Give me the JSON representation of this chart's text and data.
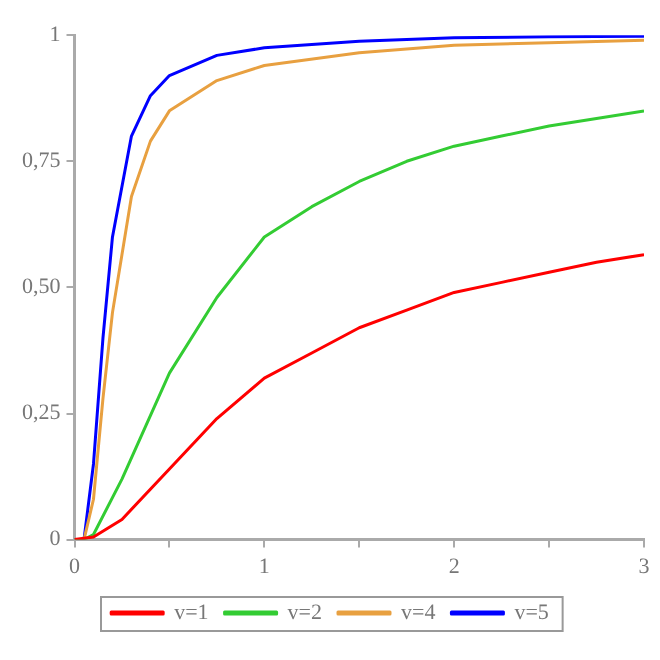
{
  "chart_data": {
    "type": "line",
    "xlim": [
      0,
      3
    ],
    "ylim": [
      0,
      1
    ],
    "xticks": [
      0,
      {
        "value": 0.5,
        "label": null
      },
      1,
      {
        "value": 1.5,
        "label": null
      },
      2,
      {
        "value": 2.5,
        "label": null
      },
      3
    ],
    "yticks": [
      0,
      {
        "value": 0.25,
        "label": "0,25"
      },
      {
        "value": 0.5,
        "label": "0,50"
      },
      {
        "value": 0.75,
        "label": "0,75"
      },
      1
    ],
    "grid": false,
    "legend": "bottom",
    "marker": "none",
    "line_style": "solid",
    "series": [
      {
        "name": "v=1",
        "color": "#ff0000",
        "x": [
          0,
          0.1,
          0.25,
          0.5,
          0.75,
          1,
          1.25,
          1.5,
          1.75,
          2,
          2.25,
          2.5,
          2.75,
          3
        ],
        "values": [
          0,
          0.005,
          0.04,
          0.14,
          0.24,
          0.32,
          0.37,
          0.42,
          0.455,
          0.49,
          0.51,
          0.53,
          0.55,
          0.565
        ]
      },
      {
        "name": "v=2",
        "color": "#33cc33",
        "x": [
          0,
          0.05,
          0.1,
          0.25,
          0.5,
          0.75,
          1,
          1.25,
          1.5,
          1.75,
          2,
          2.25,
          2.5,
          2.75,
          3
        ],
        "values": [
          0,
          0,
          0.01,
          0.12,
          0.33,
          0.48,
          0.6,
          0.66,
          0.71,
          0.75,
          0.78,
          0.8,
          0.82,
          0.835,
          0.85
        ]
      },
      {
        "name": "v=4",
        "color": "#e8a040",
        "x": [
          0,
          0.05,
          0.1,
          0.15,
          0.2,
          0.3,
          0.4,
          0.5,
          0.75,
          1,
          1.5,
          2,
          2.5,
          3
        ],
        "values": [
          0,
          0,
          0.08,
          0.28,
          0.45,
          0.68,
          0.79,
          0.85,
          0.91,
          0.94,
          0.965,
          0.98,
          0.985,
          0.99
        ]
      },
      {
        "name": "v=5",
        "color": "#0000ff",
        "x": [
          0,
          0.05,
          0.1,
          0.15,
          0.2,
          0.3,
          0.4,
          0.5,
          0.75,
          1,
          1.5,
          2,
          2.5,
          3
        ],
        "values": [
          0,
          0,
          0.15,
          0.4,
          0.6,
          0.8,
          0.88,
          0.92,
          0.96,
          0.975,
          0.988,
          0.995,
          0.997,
          0.998
        ]
      }
    ]
  }
}
